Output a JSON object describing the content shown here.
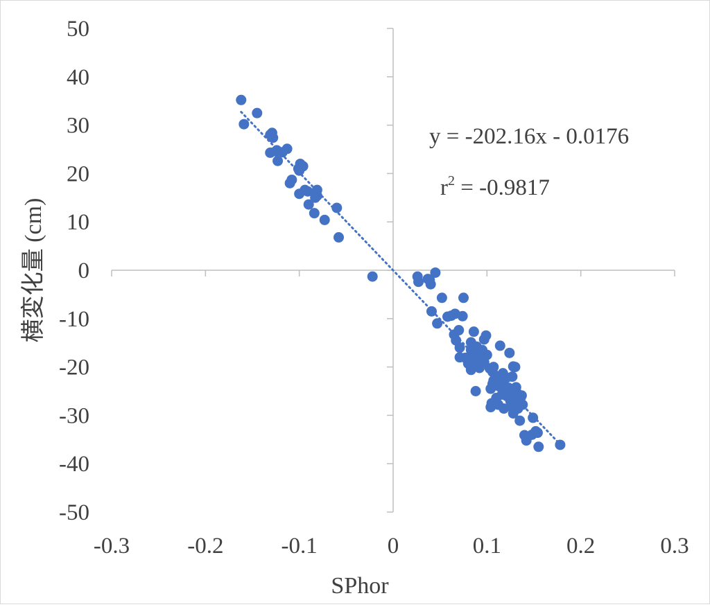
{
  "chart_data": {
    "type": "scatter",
    "title": "",
    "xlabel": "SPhor",
    "ylabel": "横変化量 (cm)",
    "xlim": [
      -0.3,
      0.3
    ],
    "ylim": [
      -50,
      50
    ],
    "x_ticks": [
      -0.3,
      -0.2,
      -0.1,
      0,
      0.1,
      0.2,
      0.3
    ],
    "y_ticks": [
      -50,
      -40,
      -30,
      -20,
      -10,
      0,
      10,
      20,
      30,
      40,
      50
    ],
    "x_tick_labels": [
      "-0.3",
      "-0.2",
      "-0.1",
      "0",
      "0.1",
      "0.2",
      "0.3"
    ],
    "y_tick_labels": [
      "-50",
      "-40",
      "-30",
      "-20",
      "-10",
      "0",
      "10",
      "20",
      "30",
      "40",
      "50"
    ],
    "grid": false,
    "legend": "none",
    "colors": {
      "points": "#4472c4",
      "trendline": "#4472c4",
      "axis": "#bfbfbf",
      "text": "#404040"
    },
    "trendline": {
      "type": "linear",
      "slope": -202.16,
      "intercept": -0.0176,
      "x_range": [
        -0.162,
        0.178
      ],
      "equation_label": "y = -202.16x - 0.0176",
      "r2_label_base": "r",
      "r2_label_sup": "2",
      "r2_label_rest": " = -0.9817"
    },
    "series": [
      {
        "x": [
          -0.162,
          -0.159,
          -0.145,
          -0.129,
          -0.131,
          -0.128,
          -0.131,
          -0.125,
          -0.123,
          -0.124,
          -0.118,
          -0.113,
          -0.11,
          -0.108,
          -0.101,
          -0.099,
          -0.096,
          -0.1,
          -0.094,
          -0.09,
          -0.1,
          -0.081,
          -0.081,
          -0.083,
          -0.091,
          -0.084,
          -0.073,
          -0.06,
          -0.058,
          -0.022,
          0.026,
          0.027,
          0.037,
          0.04,
          0.039,
          0.045,
          0.041,
          0.047,
          0.052,
          0.058,
          0.062,
          0.066,
          0.07,
          0.075,
          0.074,
          0.065,
          0.067,
          0.071,
          0.071,
          0.077,
          0.08,
          0.083,
          0.085,
          0.083,
          0.086,
          0.089,
          0.09,
          0.094,
          0.097,
          0.099,
          0.095,
          0.088,
          0.083,
          0.083,
          0.087,
          0.09,
          0.092,
          0.097,
          0.1,
          0.103,
          0.107,
          0.107,
          0.106,
          0.104,
          0.106,
          0.11,
          0.111,
          0.113,
          0.115,
          0.117,
          0.118,
          0.119,
          0.114,
          0.116,
          0.12,
          0.121,
          0.123,
          0.125,
          0.127,
          0.129,
          0.124,
          0.126,
          0.128,
          0.13,
          0.132,
          0.134,
          0.136,
          0.137,
          0.138,
          0.133,
          0.13,
          0.135,
          0.114,
          0.124,
          0.128,
          0.112,
          0.105,
          0.104,
          0.11,
          0.118,
          0.121,
          0.126,
          0.129,
          0.133,
          0.131,
          0.127,
          0.14,
          0.142,
          0.149,
          0.152,
          0.154,
          0.155,
          0.148,
          0.178,
          0.088
        ],
        "y": [
          35.2,
          30.2,
          32.5,
          28.4,
          24.3,
          27.4,
          28.0,
          24.6,
          22.6,
          24.8,
          24.4,
          25.1,
          18.0,
          18.7,
          21.0,
          22.0,
          21.5,
          15.8,
          16.6,
          13.6,
          20.6,
          16.6,
          15.4,
          15.0,
          16.3,
          11.8,
          10.4,
          12.9,
          6.8,
          -1.3,
          -1.3,
          -2.4,
          -1.8,
          -2.9,
          -2.0,
          -0.5,
          -8.5,
          -11.0,
          -5.7,
          -9.6,
          -9.4,
          -9.0,
          -12.4,
          -5.7,
          -9.5,
          -13.3,
          -14.5,
          -16.0,
          -18.0,
          -18.1,
          -19.3,
          -20.6,
          -17.6,
          -14.9,
          -12.7,
          -15.8,
          -18.3,
          -17.3,
          -14.3,
          -13.5,
          -16.5,
          -19.3,
          -16.5,
          -20.0,
          -19.5,
          -19.7,
          -20.2,
          -19.0,
          -17.5,
          -20.3,
          -20.0,
          -22.8,
          -23.5,
          -24.5,
          -21.0,
          -21.9,
          -23.0,
          -24.0,
          -22.5,
          -21.3,
          -23.8,
          -25.2,
          -15.6,
          -25.7,
          -24.4,
          -26.0,
          -24.3,
          -27.0,
          -28.3,
          -26.5,
          -25.5,
          -27.5,
          -29.6,
          -26.7,
          -25.4,
          -27.2,
          -26.3,
          -25.9,
          -27.8,
          -28.6,
          -20.0,
          -31.1,
          -23.5,
          -17.1,
          -19.9,
          -27.8,
          -27.5,
          -28.3,
          -26.4,
          -28.6,
          -22.2,
          -26.6,
          -25.1,
          -27.7,
          -24.2,
          -22.0,
          -34.1,
          -35.2,
          -30.5,
          -33.3,
          -33.6,
          -36.5,
          -34.0,
          -36.1,
          -25.0
        ]
      }
    ]
  }
}
